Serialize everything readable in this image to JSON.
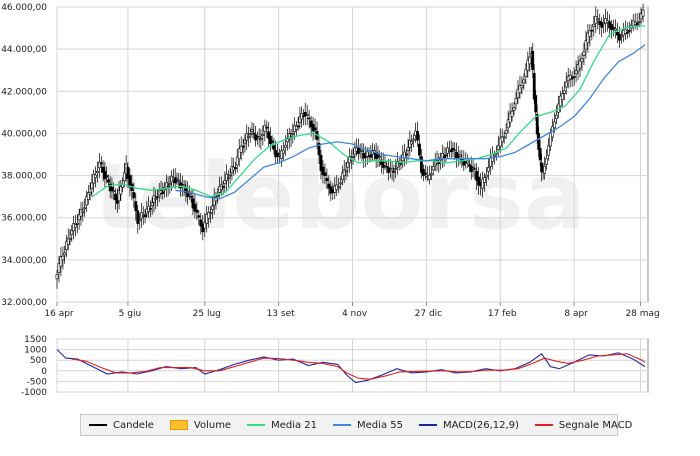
{
  "chart_data": [
    {
      "type": "candlestick",
      "title": "",
      "watermark": "teleborsa",
      "y_ticks": [
        "32.000,00",
        "34.000,00",
        "36.000,00",
        "38.000,00",
        "40.000,00",
        "42.000,00",
        "44.000,00",
        "46.000,00"
      ],
      "ylim": [
        32000,
        46000
      ],
      "x_ticks": [
        "16 apr",
        "5 giu",
        "25 lug",
        "13 set",
        "4 nov",
        "27 dic",
        "17 feb",
        "8 apr",
        "28 mag"
      ],
      "grid": true,
      "series": [
        {
          "name": "Candele",
          "kind": "close-path",
          "color": "#000000",
          "points": [
            [
              0,
              33100
            ],
            [
              4,
              34000
            ],
            [
              10,
              35200
            ],
            [
              20,
              36600
            ],
            [
              26,
              37900
            ],
            [
              30,
              38600
            ],
            [
              36,
              37600
            ],
            [
              42,
              36800
            ],
            [
              48,
              38400
            ],
            [
              52,
              37200
            ],
            [
              56,
              35900
            ],
            [
              62,
              36300
            ],
            [
              68,
              37000
            ],
            [
              74,
              37400
            ],
            [
              80,
              37900
            ],
            [
              86,
              37500
            ],
            [
              92,
              36900
            ],
            [
              96,
              36100
            ],
            [
              100,
              35500
            ],
            [
              104,
              36200
            ],
            [
              110,
              37200
            ],
            [
              116,
              37900
            ],
            [
              122,
              38500
            ],
            [
              126,
              39400
            ],
            [
              132,
              40100
            ],
            [
              138,
              39700
            ],
            [
              142,
              40300
            ],
            [
              148,
              39200
            ],
            [
              152,
              38800
            ],
            [
              156,
              39600
            ],
            [
              162,
              40200
            ],
            [
              168,
              41000
            ],
            [
              172,
              40600
            ],
            [
              176,
              40100
            ],
            [
              180,
              38400
            ],
            [
              184,
              37600
            ],
            [
              188,
              37200
            ],
            [
              192,
              37600
            ],
            [
              198,
              38600
            ],
            [
              204,
              39300
            ],
            [
              210,
              38900
            ],
            [
              216,
              39100
            ],
            [
              222,
              38500
            ],
            [
              228,
              38200
            ],
            [
              234,
              38700
            ],
            [
              240,
              39500
            ],
            [
              244,
              40100
            ],
            [
              248,
              38300
            ],
            [
              252,
              37800
            ],
            [
              256,
              38500
            ],
            [
              262,
              38900
            ],
            [
              268,
              39300
            ],
            [
              274,
              38800
            ],
            [
              278,
              38600
            ],
            [
              284,
              38200
            ],
            [
              288,
              37400
            ],
            [
              292,
              38200
            ],
            [
              296,
              38900
            ],
            [
              300,
              39400
            ],
            [
              304,
              40000
            ],
            [
              308,
              40800
            ],
            [
              312,
              41700
            ],
            [
              316,
              42400
            ],
            [
              320,
              43300
            ],
            [
              322,
              43900
            ],
            [
              324,
              41800
            ],
            [
              326,
              40000
            ],
            [
              328,
              38600
            ],
            [
              330,
              38100
            ],
            [
              334,
              39400
            ],
            [
              338,
              40700
            ],
            [
              342,
              41600
            ],
            [
              346,
              42500
            ],
            [
              350,
              42700
            ],
            [
              354,
              43100
            ],
            [
              358,
              44000
            ],
            [
              362,
              44900
            ],
            [
              366,
              45400
            ],
            [
              370,
              45200
            ],
            [
              374,
              45300
            ],
            [
              378,
              44900
            ],
            [
              382,
              44600
            ],
            [
              386,
              44800
            ],
            [
              390,
              45100
            ],
            [
              394,
              45300
            ],
            [
              398,
              45700
            ]
          ]
        },
        {
          "name": "Media 21",
          "kind": "line",
          "color": "#33dd88",
          "points": [
            [
              24,
              37000
            ],
            [
              34,
              37500
            ],
            [
              44,
              37600
            ],
            [
              54,
              37400
            ],
            [
              64,
              37300
            ],
            [
              74,
              37400
            ],
            [
              84,
              37500
            ],
            [
              94,
              37300
            ],
            [
              104,
              37000
            ],
            [
              114,
              37200
            ],
            [
              124,
              38000
            ],
            [
              134,
              38800
            ],
            [
              144,
              39400
            ],
            [
              154,
              39700
            ],
            [
              164,
              39900
            ],
            [
              174,
              40000
            ],
            [
              184,
              39600
            ],
            [
              194,
              39000
            ],
            [
              204,
              38600
            ],
            [
              214,
              38700
            ],
            [
              224,
              38700
            ],
            [
              234,
              38600
            ],
            [
              244,
              38700
            ],
            [
              254,
              38700
            ],
            [
              264,
              38600
            ],
            [
              274,
              38700
            ],
            [
              284,
              38800
            ],
            [
              294,
              39000
            ],
            [
              304,
              39300
            ],
            [
              314,
              40100
            ],
            [
              324,
              40800
            ],
            [
              334,
              41000
            ],
            [
              344,
              41300
            ],
            [
              354,
              42100
            ],
            [
              364,
              43500
            ],
            [
              374,
              44700
            ],
            [
              384,
              45000
            ],
            [
              392,
              45100
            ],
            [
              398,
              45100
            ]
          ]
        },
        {
          "name": "Media 55",
          "kind": "line",
          "color": "#3f88dd",
          "points": [
            [
              80,
              37300
            ],
            [
              90,
              37200
            ],
            [
              100,
              37000
            ],
            [
              110,
              36900
            ],
            [
              120,
              37200
            ],
            [
              130,
              37800
            ],
            [
              140,
              38400
            ],
            [
              150,
              38600
            ],
            [
              160,
              38900
            ],
            [
              170,
              39300
            ],
            [
              180,
              39500
            ],
            [
              190,
              39600
            ],
            [
              200,
              39500
            ],
            [
              210,
              39200
            ],
            [
              220,
              39000
            ],
            [
              230,
              38900
            ],
            [
              240,
              38800
            ],
            [
              250,
              38700
            ],
            [
              260,
              38800
            ],
            [
              270,
              38800
            ],
            [
              280,
              38800
            ],
            [
              290,
              38800
            ],
            [
              300,
              38900
            ],
            [
              310,
              39100
            ],
            [
              320,
              39500
            ],
            [
              330,
              39900
            ],
            [
              340,
              40300
            ],
            [
              350,
              40800
            ],
            [
              360,
              41600
            ],
            [
              370,
              42600
            ],
            [
              380,
              43400
            ],
            [
              390,
              43800
            ],
            [
              398,
              44200
            ]
          ]
        }
      ]
    },
    {
      "type": "line",
      "title": "",
      "y_ticks": [
        "1500",
        "1000",
        "500",
        "0",
        "-500",
        "-1000"
      ],
      "ylim": [
        -1000,
        1500
      ],
      "grid": true,
      "series": [
        {
          "name": "MACD(26,12,9)",
          "color": "#1f2a9c",
          "points": [
            [
              0,
              1000
            ],
            [
              6,
              600
            ],
            [
              14,
              550
            ],
            [
              24,
              200
            ],
            [
              34,
              -150
            ],
            [
              44,
              -50
            ],
            [
              54,
              -150
            ],
            [
              64,
              0
            ],
            [
              74,
              200
            ],
            [
              84,
              100
            ],
            [
              94,
              150
            ],
            [
              100,
              -150
            ],
            [
              110,
              50
            ],
            [
              120,
              300
            ],
            [
              130,
              500
            ],
            [
              140,
              650
            ],
            [
              150,
              500
            ],
            [
              160,
              550
            ],
            [
              170,
              250
            ],
            [
              180,
              400
            ],
            [
              190,
              300
            ],
            [
              196,
              -200
            ],
            [
              202,
              -550
            ],
            [
              210,
              -450
            ],
            [
              220,
              -200
            ],
            [
              230,
              100
            ],
            [
              240,
              -100
            ],
            [
              250,
              -50
            ],
            [
              260,
              50
            ],
            [
              270,
              -100
            ],
            [
              280,
              -50
            ],
            [
              290,
              100
            ],
            [
              300,
              0
            ],
            [
              310,
              100
            ],
            [
              320,
              400
            ],
            [
              328,
              800
            ],
            [
              334,
              200
            ],
            [
              340,
              100
            ],
            [
              350,
              400
            ],
            [
              360,
              750
            ],
            [
              370,
              700
            ],
            [
              380,
              850
            ],
            [
              390,
              550
            ],
            [
              398,
              200
            ]
          ]
        },
        {
          "name": "Segnale MACD",
          "color": "#e02020",
          "points": [
            [
              10,
              550
            ],
            [
              20,
              450
            ],
            [
              30,
              150
            ],
            [
              40,
              -100
            ],
            [
              50,
              -100
            ],
            [
              60,
              -30
            ],
            [
              70,
              150
            ],
            [
              80,
              150
            ],
            [
              90,
              150
            ],
            [
              100,
              0
            ],
            [
              110,
              0
            ],
            [
              120,
              200
            ],
            [
              130,
              400
            ],
            [
              140,
              600
            ],
            [
              150,
              580
            ],
            [
              160,
              500
            ],
            [
              170,
              400
            ],
            [
              180,
              350
            ],
            [
              190,
              200
            ],
            [
              196,
              -100
            ],
            [
              204,
              -350
            ],
            [
              212,
              -400
            ],
            [
              222,
              -250
            ],
            [
              232,
              -50
            ],
            [
              242,
              -30
            ],
            [
              252,
              -20
            ],
            [
              262,
              0
            ],
            [
              272,
              -50
            ],
            [
              282,
              -30
            ],
            [
              292,
              40
            ],
            [
              302,
              30
            ],
            [
              312,
              100
            ],
            [
              322,
              350
            ],
            [
              330,
              600
            ],
            [
              338,
              450
            ],
            [
              346,
              350
            ],
            [
              356,
              500
            ],
            [
              366,
              700
            ],
            [
              376,
              750
            ],
            [
              386,
              800
            ],
            [
              396,
              500
            ],
            [
              398,
              400
            ]
          ]
        }
      ]
    }
  ],
  "legend": {
    "items": [
      {
        "label": "Candele",
        "color": "#000000",
        "kind": "line"
      },
      {
        "label": "Volume",
        "color": "#ffbf2a",
        "kind": "box"
      },
      {
        "label": "Media 21",
        "color": "#33dd88",
        "kind": "line"
      },
      {
        "label": "Media 55",
        "color": "#3f88dd",
        "kind": "line"
      },
      {
        "label": "MACD(26,12,9)",
        "color": "#1f2a9c",
        "kind": "line"
      },
      {
        "label": "Segnale MACD",
        "color": "#e02020",
        "kind": "line"
      }
    ]
  }
}
